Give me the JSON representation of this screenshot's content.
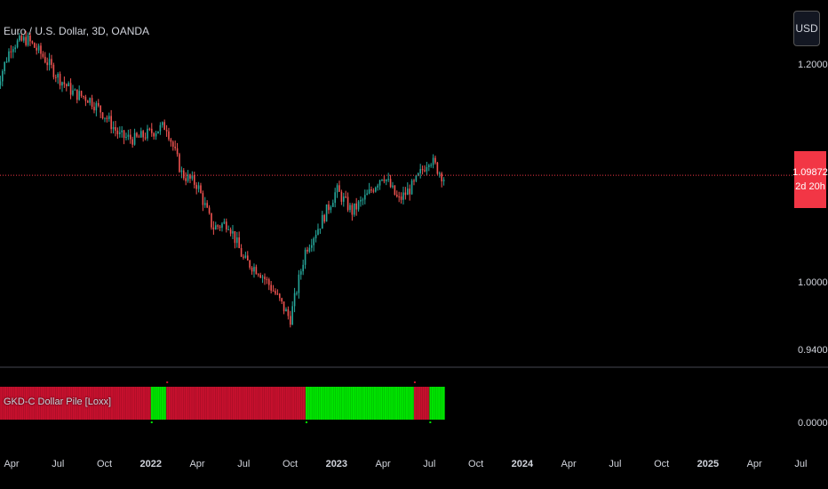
{
  "header": {
    "symbol_title": "Euro / U.S. Dollar, 3D, OANDA"
  },
  "currency_button": {
    "label": "USD"
  },
  "price_tag": {
    "price": "1.09872",
    "countdown": "2d 20h"
  },
  "indicator": {
    "label": "GKD-C Dollar Pile [Loxx]"
  },
  "colors": {
    "up": "#26a69a",
    "down": "#ef5350",
    "bull_block": "#00e600",
    "bear_block": "#c8102e",
    "price_line": "#f23645"
  },
  "chart_data": {
    "type": "candlestick",
    "main_axis": {
      "ticks": [
        "1.20000",
        "1.09872",
        "1.00000",
        "0.94000"
      ],
      "ylim": [
        0.923,
        1.245
      ]
    },
    "x_axis": {
      "labels": [
        "Apr",
        "Jul",
        "Oct",
        "2022",
        "Apr",
        "Jul",
        "Oct",
        "2023",
        "Apr",
        "Jul",
        "Oct",
        "2024",
        "Apr",
        "Jul",
        "Oct",
        "2025",
        "Apr",
        "Jul"
      ],
      "bold": [
        false,
        false,
        false,
        true,
        false,
        false,
        false,
        true,
        false,
        false,
        false,
        true,
        false,
        false,
        false,
        true,
        false,
        false
      ],
      "range": [
        "2021-03",
        "2025-07"
      ]
    },
    "price_path": [
      [
        "2021-03",
        1.18
      ],
      [
        "2021-04",
        1.22
      ],
      [
        "2021-05",
        1.225
      ],
      [
        "2021-06",
        1.21
      ],
      [
        "2021-07",
        1.19
      ],
      [
        "2021-08",
        1.175
      ],
      [
        "2021-09",
        1.17
      ],
      [
        "2021-10",
        1.155
      ],
      [
        "2021-11",
        1.135
      ],
      [
        "2021-12",
        1.132
      ],
      [
        "2022-02",
        1.145
      ],
      [
        "2022-03",
        1.1
      ],
      [
        "2022-04",
        1.09
      ],
      [
        "2022-05",
        1.05
      ],
      [
        "2022-06",
        1.055
      ],
      [
        "2022-07",
        1.02
      ],
      [
        "2022-08",
        1.01
      ],
      [
        "2022-09",
        0.99
      ],
      [
        "2022-10",
        0.965
      ],
      [
        "2022-11",
        1.03
      ],
      [
        "2022-12",
        1.055
      ],
      [
        "2023-01",
        1.085
      ],
      [
        "2023-02",
        1.065
      ],
      [
        "2023-03",
        1.08
      ],
      [
        "2023-04",
        1.1
      ],
      [
        "2023-05",
        1.075
      ],
      [
        "2023-06",
        1.09
      ],
      [
        "2023-07",
        1.115
      ],
      [
        "2023-08",
        1.095
      ]
    ],
    "current_price": 1.09872,
    "indicator_pane": {
      "name": "GKD-C Dollar Pile [Loxx]",
      "y_tick": "0.00000",
      "segments": [
        {
          "from": "2021-03",
          "to": "2022-01",
          "signal": "bear"
        },
        {
          "from": "2022-01",
          "to": "2022-02",
          "signal": "bull"
        },
        {
          "from": "2022-02",
          "to": "2022-11",
          "signal": "bear"
        },
        {
          "from": "2022-11",
          "to": "2023-06",
          "signal": "bull"
        },
        {
          "from": "2023-06",
          "to": "2023-07",
          "signal": "bear"
        },
        {
          "from": "2023-07",
          "to": "2023-08",
          "signal": "bull"
        }
      ]
    }
  }
}
